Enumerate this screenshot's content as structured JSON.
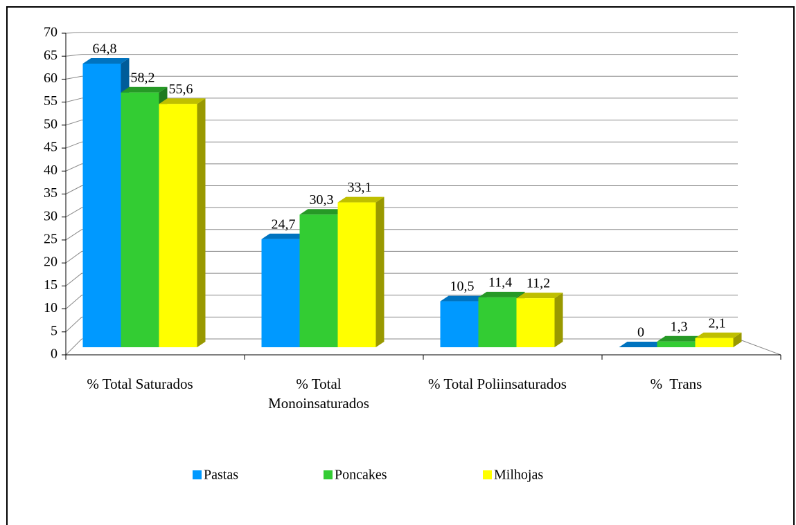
{
  "chart_data": {
    "type": "bar3d",
    "categories": [
      "% Total Saturados",
      "% Total Monoinsaturados",
      "% Total Poliinsaturados",
      "%  Trans"
    ],
    "series": [
      {
        "name": "Pastas",
        "color": "#0099ff",
        "values": [
          64.8,
          24.7,
          10.5,
          0
        ],
        "value_labels": [
          "64,8",
          "24,7",
          "10,5",
          "0"
        ]
      },
      {
        "name": "Poncakes",
        "color": "#33cc33",
        "values": [
          58.2,
          30.3,
          11.4,
          1.3
        ],
        "value_labels": [
          "58,2",
          "30,3",
          "11,4",
          "1,3"
        ]
      },
      {
        "name": "Milhojas",
        "color": "#ffff00",
        "values": [
          55.6,
          33.1,
          11.2,
          2.1
        ],
        "value_labels": [
          "55,6",
          "33,1",
          "11,2",
          "2,1"
        ]
      }
    ],
    "ylim": [
      0,
      70
    ],
    "yticks": [
      0,
      5,
      10,
      15,
      20,
      25,
      30,
      35,
      40,
      45,
      50,
      55,
      60,
      65,
      70
    ],
    "grid": true,
    "legend": "bottom"
  }
}
